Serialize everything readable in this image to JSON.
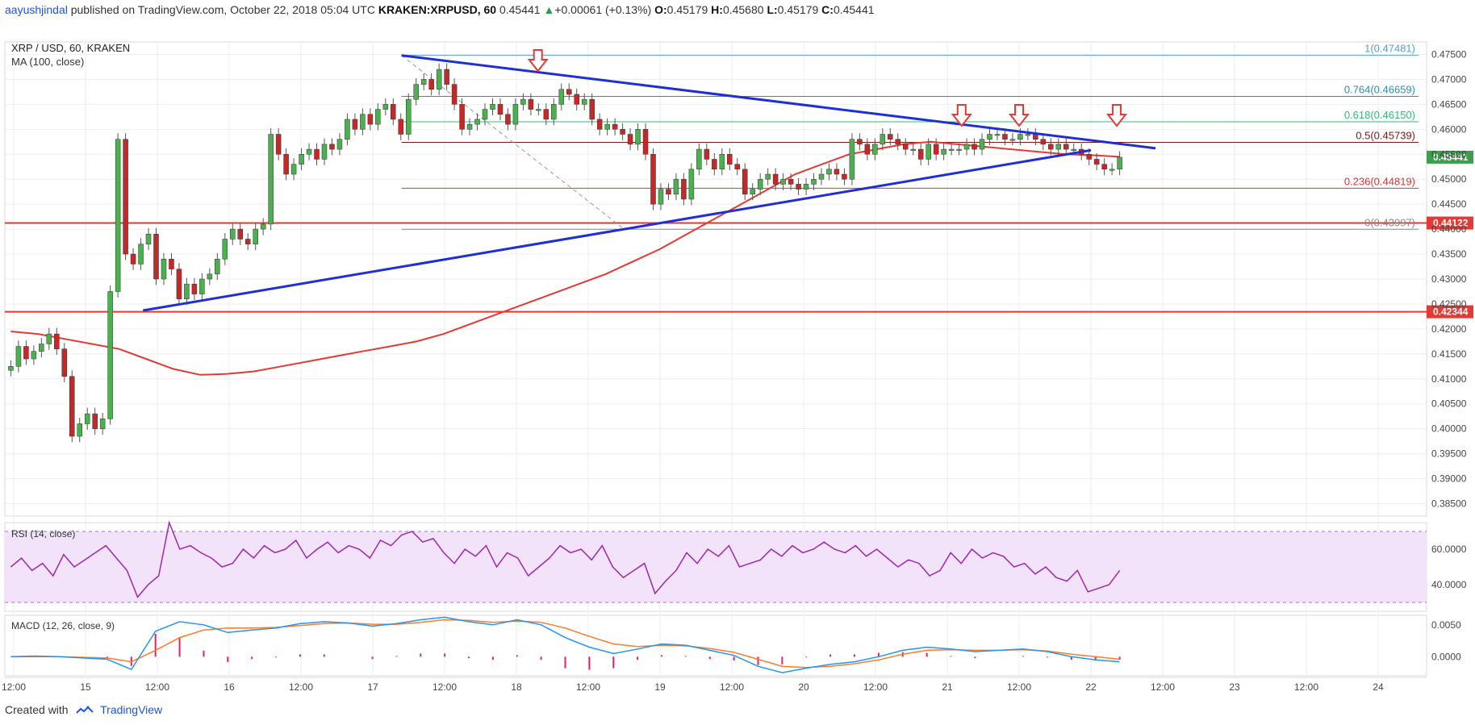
{
  "header": {
    "author": "aayushjindal",
    "published": "published on TradingView.com, October 22, 2018 05:04 UTC",
    "symbol": "KRAKEN:XRPUSD, 60",
    "last": "0.45441",
    "change": "+0.00061 (+0.13%)",
    "o_label": "O:",
    "o": "0.45179",
    "h_label": "H:",
    "h": "0.45680",
    "l_label": "L:",
    "l": "0.45179",
    "c_label": "C:",
    "c": "0.45441"
  },
  "legend": {
    "title": "XRP / USD, 60, KRAKEN",
    "ma": "MA (100, close)",
    "rsi": "RSI (14, close)",
    "macd": "MACD (12, 26, close, 9)"
  },
  "footer": {
    "created_with": "Created with",
    "brand": "TradingView"
  },
  "colors": {
    "up": "#4caf50",
    "down": "#c62828",
    "ma": "#e53935",
    "trend": "#1f2ed6",
    "level": "#e53935",
    "rsi_line": "#9c27b0",
    "rsi_band": "#f3e3fa",
    "macd_line": "#2196f3",
    "signal_line": "#ff7a2a",
    "hist": "#e91e63"
  },
  "chart_data": {
    "type": "line",
    "price_axis": {
      "min": 0.3825,
      "max": 0.4775,
      "ticks": [
        "0.47500",
        "0.47000",
        "0.46500",
        "0.46000",
        "0.45500",
        "0.45000",
        "0.44500",
        "0.44000",
        "0.43500",
        "0.43000",
        "0.42500",
        "0.42000",
        "0.41500",
        "0.41000",
        "0.40500",
        "0.40000",
        "0.39500",
        "0.39000",
        "0.38500"
      ]
    },
    "time_axis": [
      "12:00",
      "15",
      "12:00",
      "16",
      "12:00",
      "17",
      "12:00",
      "18",
      "12:00",
      "19",
      "12:00",
      "20",
      "12:00",
      "21",
      "12:00",
      "22",
      "12:00",
      "23",
      "12:00",
      "24"
    ],
    "last_price": {
      "label": "0.45441",
      "value": 0.45441
    },
    "horizontal_levels": [
      {
        "label": "0.44122",
        "value": 0.44122
      },
      {
        "label": "0.42344",
        "value": 0.42344
      }
    ],
    "fibonacci": [
      {
        "label": "1(0.47481)",
        "value": 0.47481,
        "color": "#5b9bd5"
      },
      {
        "label": "0.764(0.46659)",
        "value": 0.46659,
        "color": "#2b8fb0"
      },
      {
        "label": "0.618(0.46150)",
        "value": 0.4615,
        "color": "#35b87a"
      },
      {
        "label": "0.5(0.45739)",
        "value": 0.45739,
        "color": "#7a1a1a"
      },
      {
        "label": "0.236(0.44819)",
        "value": 0.44819,
        "color": "#d33"
      },
      {
        "label": "0(0.43997)",
        "value": 0.43997,
        "color": "#888"
      }
    ],
    "trendlines": [
      {
        "from": [
          17.2,
          0.4748
        ],
        "to": [
          22.45,
          0.4562
        ]
      },
      {
        "from": [
          15.4,
          0.4237
        ],
        "to": [
          22.0,
          0.4558
        ]
      }
    ],
    "arrow_markers_day": [
      18.15,
      21.1,
      21.5,
      22.18
    ],
    "candles_close": [
      0.4125,
      0.4165,
      0.414,
      0.4155,
      0.417,
      0.419,
      0.416,
      0.4105,
      0.3985,
      0.401,
      0.403,
      0.4,
      0.402,
      0.4275,
      0.458,
      0.435,
      0.433,
      0.437,
      0.439,
      0.43,
      0.434,
      0.432,
      0.426,
      0.429,
      0.427,
      0.43,
      0.431,
      0.434,
      0.438,
      0.44,
      0.438,
      0.437,
      0.44,
      0.441,
      0.459,
      0.455,
      0.451,
      0.453,
      0.455,
      0.456,
      0.454,
      0.457,
      0.456,
      0.458,
      0.462,
      0.46,
      0.463,
      0.461,
      0.464,
      0.465,
      0.462,
      0.459,
      0.466,
      0.469,
      0.47,
      0.468,
      0.472,
      0.469,
      0.465,
      0.46,
      0.461,
      0.462,
      0.464,
      0.465,
      0.463,
      0.461,
      0.465,
      0.466,
      0.464,
      0.464,
      0.462,
      0.465,
      0.468,
      0.467,
      0.465,
      0.466,
      0.462,
      0.46,
      0.461,
      0.46,
      0.459,
      0.457,
      0.46,
      0.455,
      0.445,
      0.448,
      0.447,
      0.45,
      0.446,
      0.452,
      0.456,
      0.454,
      0.452,
      0.455,
      0.453,
      0.452,
      0.447,
      0.448,
      0.45,
      0.451,
      0.449,
      0.45,
      0.449,
      0.448,
      0.449,
      0.45,
      0.451,
      0.452,
      0.451,
      0.45,
      0.458,
      0.457,
      0.455,
      0.457,
      0.459,
      0.458,
      0.457,
      0.456,
      0.456,
      0.454,
      0.457,
      0.455,
      0.456,
      0.456,
      0.456,
      0.457,
      0.456,
      0.458,
      0.459,
      0.459,
      0.458,
      0.458,
      0.459,
      0.459,
      0.458,
      0.457,
      0.456,
      0.457,
      0.456,
      0.456,
      0.455,
      0.454,
      0.453,
      0.452,
      0.452,
      0.4544
    ],
    "ma100": [
      0.4195,
      0.419,
      0.418,
      0.417,
      0.416,
      0.414,
      0.412,
      0.4108,
      0.411,
      0.4115,
      0.4125,
      0.4135,
      0.4145,
      0.4155,
      0.4165,
      0.4175,
      0.419,
      0.421,
      0.423,
      0.425,
      0.427,
      0.429,
      0.431,
      0.4335,
      0.436,
      0.439,
      0.442,
      0.445,
      0.448,
      0.451,
      0.453,
      0.455,
      0.456,
      0.457,
      0.4575,
      0.457,
      0.4565,
      0.456,
      0.4555,
      0.455,
      0.4548,
      0.4545
    ],
    "rsi": {
      "min": 25,
      "max": 75,
      "levels": [
        30,
        70
      ],
      "ticks": [
        "60.0000",
        "40.0000"
      ],
      "values": [
        50,
        55,
        48,
        52,
        45,
        57,
        50,
        54,
        58,
        62,
        55,
        48,
        33,
        40,
        45,
        75,
        60,
        62,
        58,
        55,
        50,
        52,
        60,
        55,
        62,
        58,
        60,
        65,
        55,
        60,
        64,
        58,
        62,
        60,
        55,
        65,
        62,
        68,
        70,
        64,
        66,
        58,
        52,
        60,
        56,
        62,
        50,
        58,
        55,
        45,
        50,
        55,
        62,
        58,
        60,
        54,
        62,
        50,
        44,
        48,
        52,
        35,
        42,
        48,
        58,
        52,
        60,
        56,
        62,
        50,
        52,
        54,
        60,
        56,
        62,
        58,
        60,
        64,
        60,
        58,
        62,
        56,
        60,
        55,
        50,
        54,
        52,
        45,
        48,
        58,
        52,
        60,
        55,
        58,
        56,
        50,
        52,
        46,
        50,
        44,
        42,
        48,
        36,
        38,
        40,
        48
      ]
    },
    "macd": {
      "min": -0.003,
      "max": 0.0065,
      "ticks": [
        "0.0050",
        "0.0000"
      ],
      "macd_line": [
        0.0,
        0.0001,
        0.0,
        -0.0002,
        -0.0004,
        -0.002,
        0.004,
        0.0055,
        0.005,
        0.0038,
        0.0042,
        0.0045,
        0.0052,
        0.0055,
        0.0053,
        0.0048,
        0.0052,
        0.0058,
        0.0062,
        0.0055,
        0.005,
        0.0058,
        0.005,
        0.003,
        0.0015,
        0.0005,
        0.0012,
        0.002,
        0.0018,
        0.001,
        0.0002,
        -0.0015,
        -0.0025,
        -0.0018,
        -0.0012,
        -0.0008,
        0.0,
        0.001,
        0.0015,
        0.0012,
        0.0008,
        0.001,
        0.0012,
        0.0008,
        0.0,
        -0.0005,
        -0.0008
      ],
      "signal_line": [
        0.0,
        0.0,
        0.0,
        -0.0001,
        -0.0002,
        -0.0008,
        0.001,
        0.003,
        0.0042,
        0.0045,
        0.0045,
        0.0046,
        0.0049,
        0.0052,
        0.0053,
        0.0051,
        0.0051,
        0.0054,
        0.0058,
        0.0057,
        0.0054,
        0.0056,
        0.0054,
        0.0045,
        0.0032,
        0.002,
        0.0016,
        0.0018,
        0.0017,
        0.0013,
        0.0007,
        -0.0004,
        -0.0015,
        -0.0017,
        -0.0015,
        -0.0011,
        -0.0005,
        0.0004,
        0.001,
        0.0011,
        0.001,
        0.001,
        0.0011,
        0.0009,
        0.0004,
        0.0,
        -0.0004
      ]
    }
  }
}
